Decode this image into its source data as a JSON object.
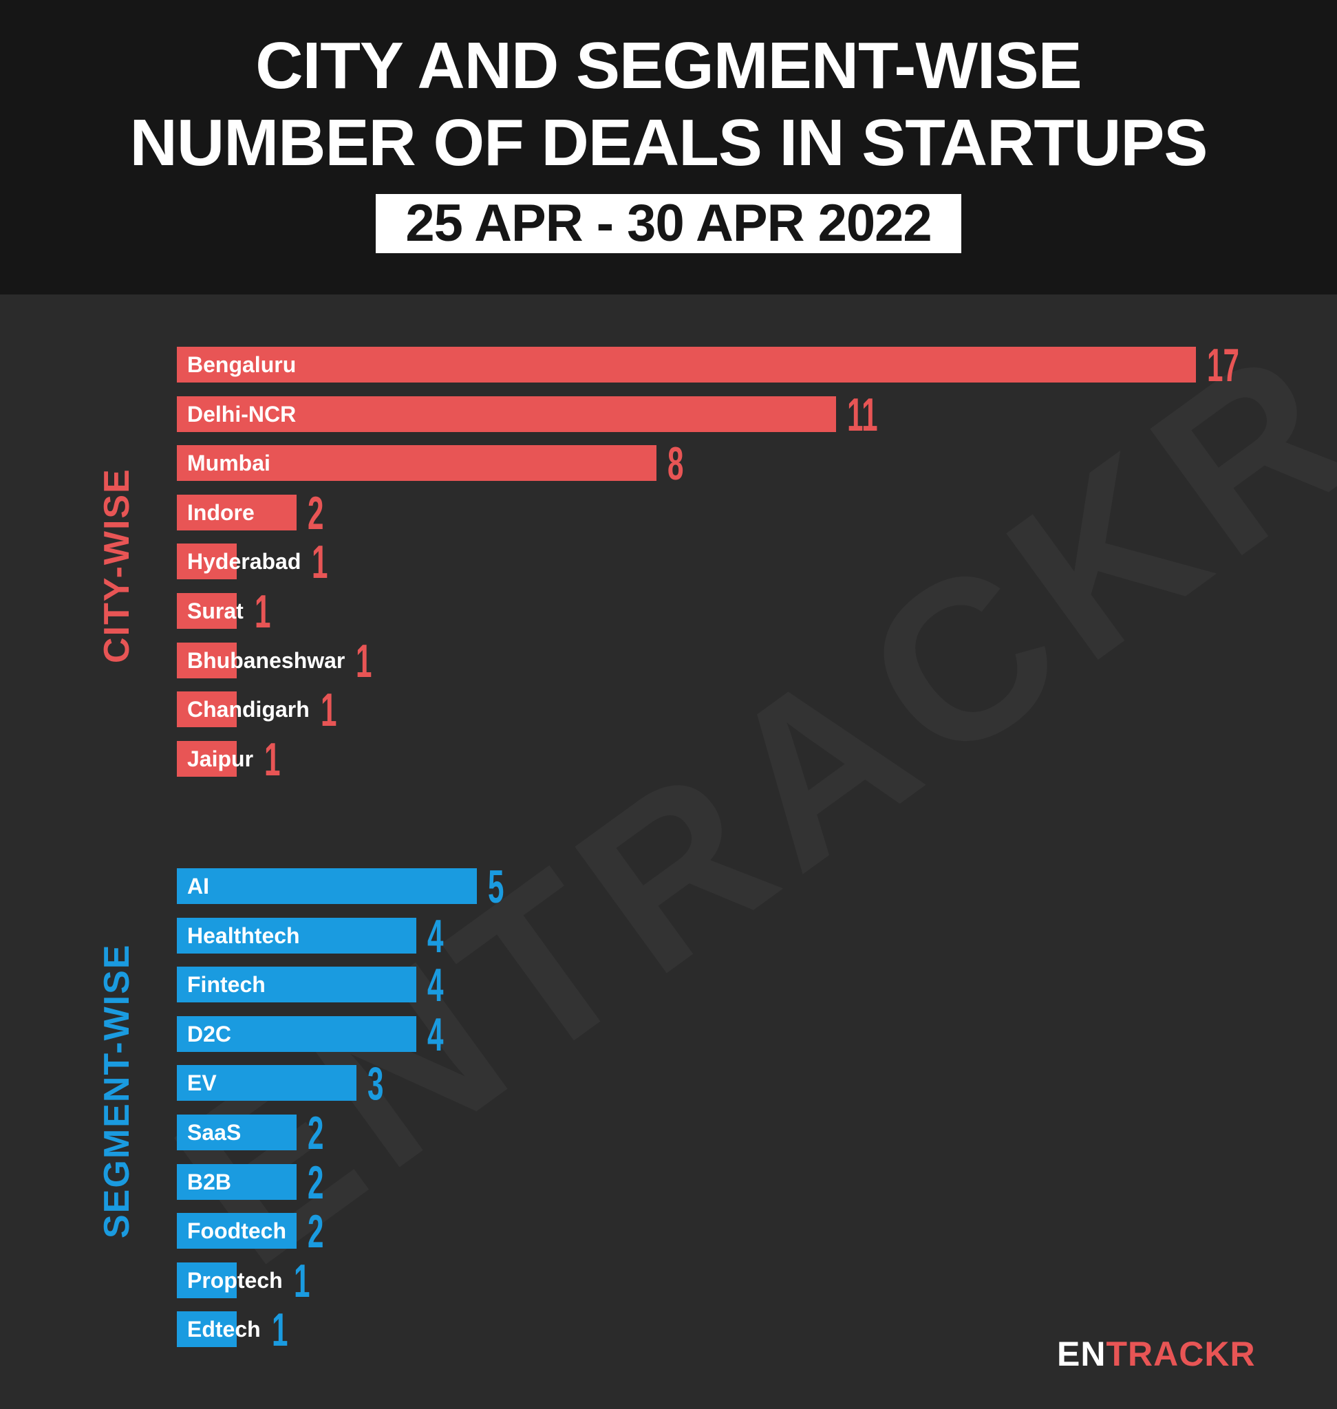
{
  "header": {
    "title_line1": "CITY AND SEGMENT-WISE",
    "title_line2": "NUMBER OF DEALS IN STARTUPS",
    "date_range": "25 APR - 30 APR 2022"
  },
  "watermark": "ENTRACKR",
  "logo": {
    "part1": "EN",
    "part2": "TRACKR"
  },
  "colors": {
    "city_bar": "#e85555",
    "segment_bar": "#1a9be0",
    "header_bg": "#161616",
    "body_bg": "#2b2b2b"
  },
  "chart_data": [
    {
      "type": "bar",
      "orientation": "horizontal",
      "section_label": "CITY-WISE",
      "categories": [
        "Bengaluru",
        "Delhi-NCR",
        "Mumbai",
        "Indore",
        "Hyderabad",
        "Surat",
        "Bhubaneshwar",
        "Chandigarh",
        "Jaipur"
      ],
      "values": [
        17,
        11,
        8,
        2,
        1,
        1,
        1,
        1,
        1
      ],
      "xlim": [
        0,
        17
      ]
    },
    {
      "type": "bar",
      "orientation": "horizontal",
      "section_label": "SEGMENT-WISE",
      "categories": [
        "AI",
        "Healthtech",
        "Fintech",
        "D2C",
        "EV",
        "SaaS",
        "B2B",
        "Foodtech",
        "Proptech",
        "Edtech"
      ],
      "values": [
        5,
        4,
        4,
        4,
        3,
        2,
        2,
        2,
        1,
        1
      ],
      "xlim": [
        0,
        17
      ]
    }
  ]
}
